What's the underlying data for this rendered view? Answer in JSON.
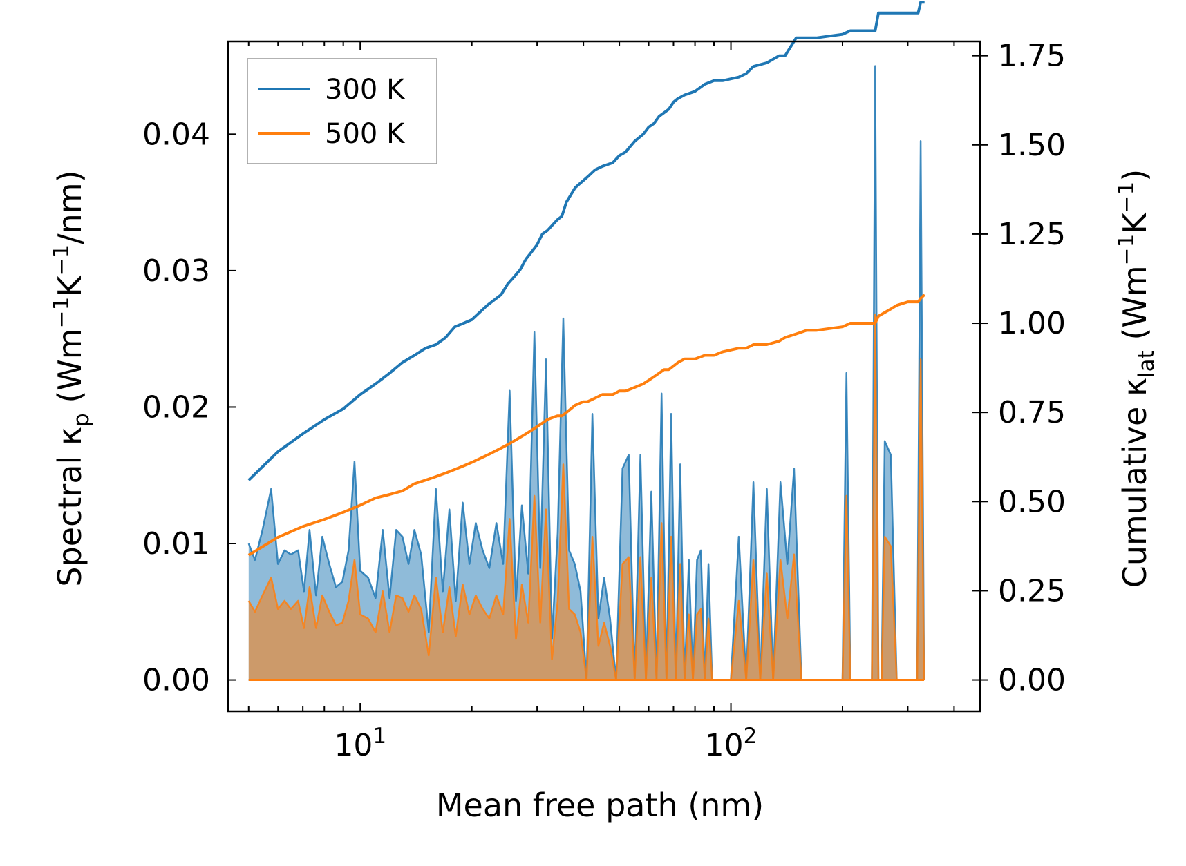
{
  "chart_data": {
    "type": "line",
    "xscale": "log",
    "xlabel": "Mean free path (nm)",
    "ylabel_left": {
      "pre": "Spectral κ",
      "sub": "p",
      "post": " (Wm",
      "sup1": "−1",
      "mid": "K",
      "sup2": "−1",
      "end": "/nm)"
    },
    "ylabel_right": {
      "pre": "Cumulative κ",
      "sub": "lat",
      "post": " (Wm",
      "sup1": "−1",
      "mid": "K",
      "sup2": "−1",
      "end": ")"
    },
    "xlim": [
      4.4,
      470
    ],
    "ylim_left": [
      -0.0023,
      0.0468
    ],
    "ylim_right": [
      -0.088,
      1.79
    ],
    "x_ticks": [
      {
        "base": "10",
        "exp": "1",
        "value": 10
      },
      {
        "base": "10",
        "exp": "2",
        "value": 100
      }
    ],
    "y_ticks_left": [
      "0.00",
      "0.01",
      "0.02",
      "0.03",
      "0.04"
    ],
    "y_ticks_right": [
      "0.00",
      "0.25",
      "0.50",
      "0.75",
      "1.00",
      "1.25",
      "1.50",
      "1.75"
    ],
    "legend": {
      "position": "top-left",
      "entries": [
        {
          "label": "300 K",
          "color": "#1f77b4"
        },
        {
          "label": "500 K",
          "color": "#ff7f0e"
        }
      ]
    },
    "series": [
      {
        "name": "300 K",
        "color": "#1f77b4",
        "spectral": {
          "x": [
            5.0,
            5.2,
            5.45,
            5.75,
            6.0,
            6.25,
            6.5,
            6.8,
            7.05,
            7.3,
            7.6,
            7.9,
            8.25,
            8.6,
            8.95,
            9.3,
            9.65,
            10.0,
            10.5,
            11.0,
            11.5,
            12.0,
            12.5,
            13.0,
            13.5,
            14.0,
            14.6,
            15.3,
            16.0,
            16.7,
            17.4,
            18.1,
            18.9,
            19.7,
            20.5,
            21.4,
            22.3,
            23.3,
            24.3,
            25.3,
            26.3,
            27.3,
            28.4,
            29.5,
            30.6,
            31.7,
            32.9,
            34.1,
            35.3,
            36.6,
            37.9,
            39.3,
            40.8,
            42.3,
            43.9,
            45.5,
            47.2,
            49.0,
            51.0,
            53.0,
            55.0,
            57.0,
            59.0,
            61.0,
            63.0,
            65.0,
            67.0,
            69.0,
            71.0,
            73.0,
            75.0,
            77.0,
            79.0,
            81.0,
            83.0,
            85.0,
            87.0,
            89.0,
            92.0,
            96.0,
            100.0,
            105.0,
            110.0,
            115.0,
            120.0,
            125.0,
            130.0,
            136.0,
            142.0,
            148.0,
            155.0,
            162.0,
            170.0,
            200.0,
            205.0,
            210.0,
            215.0,
            220.0,
            230.0,
            240.0,
            245.0,
            250.0,
            255.0,
            260.0,
            270.0,
            280.0,
            290.0,
            300.0,
            318.0,
            325.0,
            332.0
          ],
          "values": [
            0.01,
            0.0088,
            0.011,
            0.014,
            0.0085,
            0.0095,
            0.0092,
            0.0095,
            0.0065,
            0.011,
            0.0062,
            0.0105,
            0.0085,
            0.0068,
            0.0072,
            0.0095,
            0.016,
            0.008,
            0.0075,
            0.006,
            0.011,
            0.006,
            0.011,
            0.0105,
            0.0085,
            0.011,
            0.0092,
            0.0035,
            0.014,
            0.0065,
            0.0125,
            0.0058,
            0.013,
            0.0085,
            0.0115,
            0.0095,
            0.0082,
            0.0115,
            0.0085,
            0.0212,
            0.0058,
            0.0128,
            0.0078,
            0.0255,
            0.0082,
            0.0235,
            0.003,
            0.0108,
            0.0265,
            0.0095,
            0.0085,
            0.0065,
            0.0,
            0.0195,
            0.0045,
            0.0075,
            0.0045,
            0.0,
            0.0155,
            0.0165,
            0.0,
            0.0165,
            0.0,
            0.0138,
            0.0,
            0.021,
            0.0,
            0.0195,
            0.0,
            0.0158,
            0.0,
            0.0088,
            0.0,
            0.0088,
            0.0095,
            0.0,
            0.0085,
            0.0,
            0.0,
            0.0,
            0.0,
            0.0105,
            0.0,
            0.0145,
            0.0,
            0.014,
            0.0,
            0.0145,
            0.0085,
            0.0155,
            0.0,
            0.0,
            0.0,
            0.0,
            0.0225,
            0.0,
            0.0,
            0.0,
            0.0,
            0.0,
            0.045,
            0.0,
            0.0,
            0.0175,
            0.0165,
            0.0,
            0.0,
            0.0,
            0.0,
            0.0395,
            0.0
          ]
        },
        "cumulative": {
          "x": [
            5.0,
            6.0,
            7.0,
            8.0,
            9.0,
            10.0,
            11.0,
            12.0,
            13.0,
            14.0,
            15.0,
            16.0,
            17.0,
            18.0,
            19.0,
            20.0,
            22.0,
            24.0,
            25.0,
            26.0,
            27.0,
            28.0,
            29.0,
            30.0,
            31.0,
            32.0,
            34.0,
            35.0,
            36.0,
            38.0,
            40.0,
            41.0,
            43.0,
            45.0,
            48.0,
            50.0,
            52.0,
            55.0,
            58.0,
            60.0,
            62.0,
            64.0,
            66.0,
            68.0,
            70.0,
            72.0,
            75.0,
            80.0,
            85.0,
            90.0,
            95.0,
            105.0,
            110.0,
            115.0,
            125.0,
            135.0,
            140.0,
            150.0,
            160.0,
            170.0,
            200.0,
            210.0,
            215.0,
            245.0,
            250.0,
            260.0,
            270.0,
            280.0,
            300.0,
            320.0,
            325.0,
            333.0
          ],
          "values": [
            0.56,
            0.64,
            0.69,
            0.73,
            0.76,
            0.8,
            0.83,
            0.86,
            0.89,
            0.91,
            0.93,
            0.94,
            0.96,
            0.99,
            1.0,
            1.01,
            1.05,
            1.08,
            1.11,
            1.13,
            1.15,
            1.18,
            1.2,
            1.22,
            1.25,
            1.26,
            1.29,
            1.3,
            1.34,
            1.38,
            1.4,
            1.41,
            1.43,
            1.44,
            1.45,
            1.47,
            1.48,
            1.51,
            1.53,
            1.55,
            1.56,
            1.58,
            1.59,
            1.6,
            1.62,
            1.63,
            1.64,
            1.65,
            1.67,
            1.68,
            1.68,
            1.69,
            1.7,
            1.72,
            1.73,
            1.75,
            1.75,
            1.8,
            1.8,
            1.8,
            1.81,
            1.82,
            1.82,
            1.82,
            1.87,
            1.87,
            1.87,
            1.87,
            1.87,
            1.87,
            1.9,
            1.9
          ]
        }
      },
      {
        "name": "500 K",
        "color": "#ff7f0e",
        "spectral": {
          "x": [
            5.0,
            5.2,
            5.45,
            5.75,
            6.0,
            6.25,
            6.5,
            6.8,
            7.05,
            7.3,
            7.6,
            7.9,
            8.25,
            8.6,
            8.95,
            9.3,
            9.65,
            10.0,
            10.5,
            11.0,
            11.5,
            12.0,
            12.5,
            13.0,
            13.5,
            14.0,
            14.6,
            15.3,
            16.0,
            16.7,
            17.4,
            18.1,
            18.9,
            19.7,
            20.5,
            21.4,
            22.3,
            23.3,
            24.3,
            25.3,
            26.3,
            27.3,
            28.4,
            29.5,
            30.6,
            31.7,
            32.9,
            34.1,
            35.3,
            36.6,
            37.9,
            39.3,
            40.8,
            42.3,
            43.9,
            45.5,
            47.2,
            49.0,
            51.0,
            53.0,
            55.0,
            57.0,
            59.0,
            61.0,
            63.0,
            65.0,
            67.0,
            69.0,
            71.0,
            73.0,
            75.0,
            77.0,
            79.0,
            81.0,
            83.0,
            85.0,
            87.0,
            89.0,
            92.0,
            96.0,
            100.0,
            105.0,
            110.0,
            115.0,
            120.0,
            125.0,
            130.0,
            136.0,
            142.0,
            148.0,
            155.0,
            162.0,
            170.0,
            200.0,
            205.0,
            210.0,
            215.0,
            220.0,
            230.0,
            240.0,
            245.0,
            250.0,
            255.0,
            260.0,
            270.0,
            280.0,
            290.0,
            300.0,
            318.0,
            325.0,
            332.0
          ],
          "values": [
            0.0058,
            0.005,
            0.0062,
            0.0075,
            0.0052,
            0.0058,
            0.0052,
            0.0058,
            0.0038,
            0.0068,
            0.0038,
            0.0062,
            0.005,
            0.004,
            0.0042,
            0.0058,
            0.0088,
            0.0048,
            0.0045,
            0.0035,
            0.0065,
            0.0035,
            0.0062,
            0.006,
            0.005,
            0.0062,
            0.0052,
            0.0018,
            0.0075,
            0.0035,
            0.0068,
            0.0032,
            0.007,
            0.0048,
            0.0062,
            0.0052,
            0.0045,
            0.0062,
            0.0048,
            0.0118,
            0.003,
            0.007,
            0.0042,
            0.0135,
            0.0042,
            0.0125,
            0.0015,
            0.0058,
            0.0158,
            0.0052,
            0.0048,
            0.0035,
            0.0,
            0.0105,
            0.0025,
            0.0042,
            0.0025,
            0.0,
            0.0085,
            0.009,
            0.0,
            0.009,
            0.0,
            0.0075,
            0.0,
            0.0115,
            0.0,
            0.0105,
            0.0,
            0.0085,
            0.0,
            0.0048,
            0.0,
            0.0048,
            0.0052,
            0.0,
            0.0045,
            0.0,
            0.0,
            0.0,
            0.0,
            0.0058,
            0.0,
            0.0088,
            0.0,
            0.0078,
            0.0,
            0.0088,
            0.0045,
            0.0092,
            0.0,
            0.0,
            0.0,
            0.0,
            0.0135,
            0.0,
            0.0,
            0.0,
            0.0,
            0.0,
            0.0268,
            0.0,
            0.0,
            0.0105,
            0.0098,
            0.0,
            0.0,
            0.0,
            0.0,
            0.0235,
            0.0
          ]
        },
        "cumulative": {
          "x": [
            5.0,
            6.0,
            7.0,
            8.0,
            9.0,
            10.0,
            11.0,
            12.0,
            13.0,
            14.0,
            15.0,
            16.0,
            17.0,
            18.0,
            19.0,
            20.0,
            22.0,
            24.0,
            25.0,
            26.0,
            27.0,
            28.0,
            29.0,
            30.0,
            31.0,
            32.0,
            34.0,
            35.0,
            36.0,
            38.0,
            40.0,
            41.0,
            43.0,
            45.0,
            48.0,
            50.0,
            52.0,
            55.0,
            58.0,
            60.0,
            62.0,
            64.0,
            66.0,
            68.0,
            70.0,
            72.0,
            75.0,
            80.0,
            85.0,
            90.0,
            95.0,
            105.0,
            110.0,
            115.0,
            125.0,
            135.0,
            140.0,
            150.0,
            160.0,
            170.0,
            200.0,
            210.0,
            215.0,
            245.0,
            250.0,
            260.0,
            270.0,
            280.0,
            300.0,
            320.0,
            325.0,
            333.0
          ],
          "values": [
            0.35,
            0.4,
            0.43,
            0.45,
            0.47,
            0.49,
            0.51,
            0.52,
            0.53,
            0.55,
            0.56,
            0.57,
            0.58,
            0.59,
            0.6,
            0.61,
            0.63,
            0.65,
            0.66,
            0.67,
            0.68,
            0.69,
            0.7,
            0.71,
            0.72,
            0.73,
            0.74,
            0.74,
            0.75,
            0.77,
            0.78,
            0.78,
            0.79,
            0.8,
            0.8,
            0.81,
            0.81,
            0.82,
            0.83,
            0.84,
            0.85,
            0.86,
            0.87,
            0.87,
            0.88,
            0.89,
            0.9,
            0.9,
            0.91,
            0.91,
            0.92,
            0.93,
            0.93,
            0.94,
            0.94,
            0.95,
            0.96,
            0.97,
            0.98,
            0.98,
            0.99,
            1.0,
            1.0,
            1.0,
            1.02,
            1.03,
            1.04,
            1.05,
            1.06,
            1.06,
            1.07,
            1.08
          ]
        }
      }
    ]
  }
}
